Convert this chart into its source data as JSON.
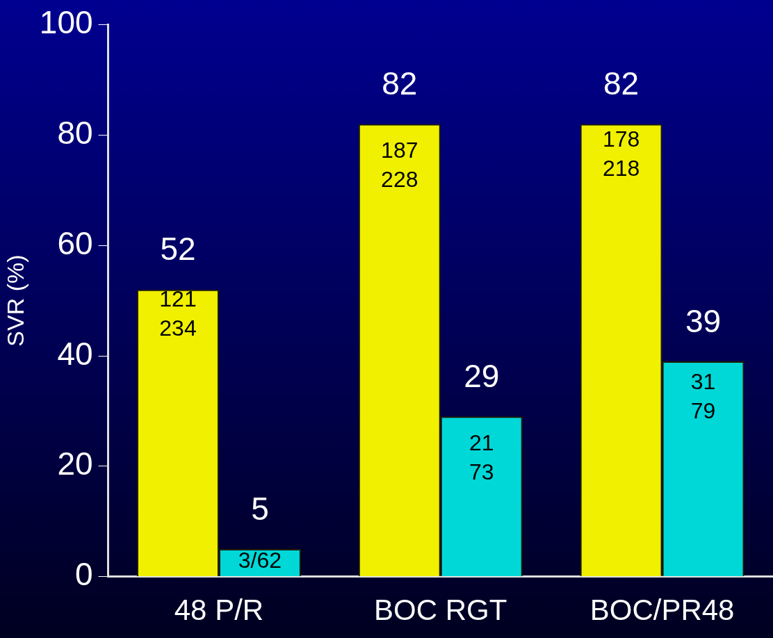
{
  "chart_data": {
    "type": "bar",
    "ylabel": "SVR (%)",
    "categories": [
      "48 P/R",
      "BOC RGT",
      "BOC/PR48"
    ],
    "series": [
      {
        "color": "#f0f000",
        "values": [
          52,
          82,
          82
        ]
      },
      {
        "color": "#00d8d8",
        "values": [
          5,
          29,
          39
        ]
      }
    ],
    "ylim": [
      0,
      100
    ],
    "yticks": [
      0,
      20,
      40,
      60,
      80,
      100
    ],
    "data_labels": true,
    "grid": false,
    "legend": false,
    "annotations": [
      {
        "text": "121\n234",
        "x": "48 P/R",
        "y": 47
      },
      {
        "text": "3/62",
        "x": "48 P/R",
        "y": 2
      },
      {
        "text": "187\n228",
        "x": "BOC RGT",
        "y": 74
      },
      {
        "text": "21\n73",
        "x": "BOC RGT",
        "y": 21
      },
      {
        "text": "178\n218",
        "x": "BOC/PR48",
        "y": 76
      },
      {
        "text": "31\n79",
        "x": "BOC/PR48",
        "y": 32
      }
    ]
  }
}
